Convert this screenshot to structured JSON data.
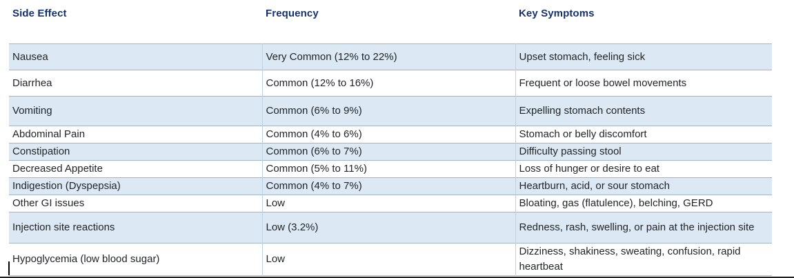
{
  "table": {
    "columns": [
      "Side Effect",
      "Frequency",
      "Key Symptoms"
    ],
    "column_keys": [
      "side-effect",
      "frequency",
      "key-symptoms"
    ],
    "rows": [
      {
        "cells": [
          "Nausea",
          "Very Common (12% to 22%)",
          "Upset stomach, feeling sick"
        ]
      },
      {
        "cells": [
          "Diarrhea",
          "Common (12% to 16%)",
          "Frequent or loose bowel movements"
        ]
      },
      {
        "cells": [
          "Vomiting",
          "Common (6% to 9%)",
          "Expelling stomach contents"
        ]
      },
      {
        "cells": [
          "Abdominal Pain",
          "Common (4% to 6%)",
          "Stomach or belly discomfort"
        ]
      },
      {
        "cells": [
          "Constipation",
          "Common (6% to 7%)",
          "Difficulty passing stool"
        ]
      },
      {
        "cells": [
          "Decreased Appetite",
          "Common (5% to 11%)",
          "Loss of hunger or desire to eat"
        ]
      },
      {
        "cells": [
          "Indigestion (Dyspepsia)",
          "Common (4% to 7%)",
          "Heartburn, acid, or sour stomach"
        ]
      },
      {
        "cells": [
          "Other GI issues",
          "Low",
          "Bloating, gas (flatulence), belching, GERD"
        ]
      },
      {
        "cells": [
          "Injection site reactions",
          "Low (3.2%)",
          "Redness, rash, swelling, or pain at the injection site"
        ]
      },
      {
        "cells": [
          "Hypoglycemia (low blood sugar)",
          "Low",
          "Dizziness, shakiness, sweating, confusion, rapid heartbeat"
        ]
      }
    ]
  },
  "colors": {
    "header_text": "#14316f",
    "body_text": "#212529",
    "row_shade": "#dce8f4",
    "border_horizontal": "#9fb6c9",
    "border_vertical": "#b9d1e3",
    "caret": "#000000",
    "bottom_edge": "#1f1f1f"
  }
}
